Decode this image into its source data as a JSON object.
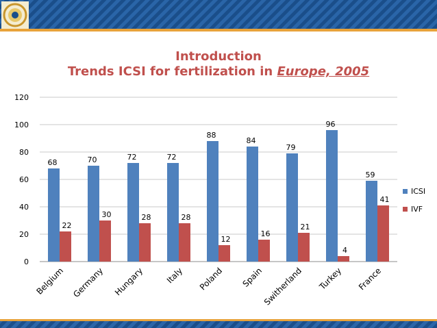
{
  "slide": {
    "title_line1": "Introduction",
    "title_line2_prefix": "Trends ICSI for fertilization in ",
    "title_line2_emph": "Europe, 2005"
  },
  "logo": {
    "icon": "emblem-icon"
  },
  "colors": {
    "icsi": "#4f81bd",
    "ivf": "#c0504d",
    "title": "#c0504d",
    "band": "#1a4e8a"
  },
  "chart_data": {
    "type": "bar",
    "title": "Trends ICSI for fertilization in Europe, 2005",
    "categories": [
      "Belgium",
      "Germany",
      "Hungary",
      "Italy",
      "Poland",
      "Spain",
      "Switherland",
      "Turkey",
      "France"
    ],
    "series": [
      {
        "name": "ICSI",
        "values": [
          68,
          70,
          72,
          72,
          88,
          84,
          79,
          96,
          59
        ]
      },
      {
        "name": "IVF",
        "values": [
          22,
          30,
          28,
          28,
          12,
          16,
          21,
          4,
          41
        ]
      }
    ],
    "ylim": [
      0,
      120
    ],
    "yticks": [
      0,
      20,
      40,
      60,
      80,
      100,
      120
    ],
    "grid": true,
    "legend": "right"
  }
}
